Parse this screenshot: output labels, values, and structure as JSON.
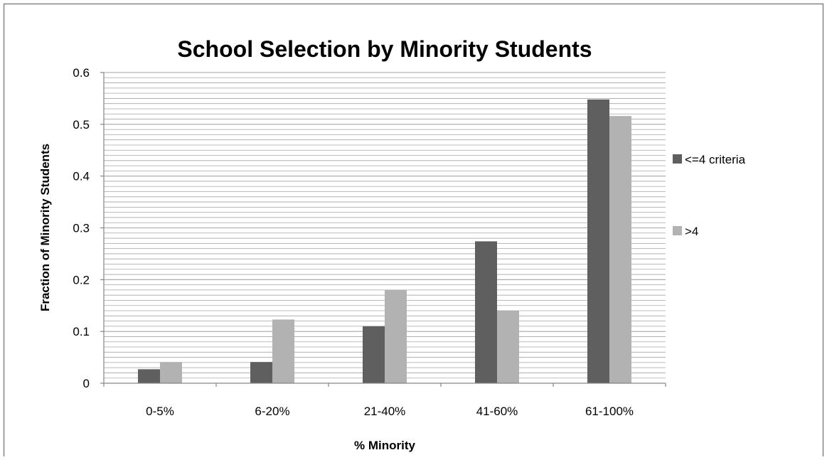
{
  "chart_data": {
    "type": "bar",
    "title": "School Selection by Minority Students",
    "xlabel": "% Minority",
    "ylabel": "Fraction of Minority Students",
    "categories": [
      "0-5%",
      "6-20%",
      "21-40%",
      "41-60%",
      "61-100%"
    ],
    "series": [
      {
        "name": "<=4 criteria",
        "values": [
          0.027,
          0.041,
          0.11,
          0.274,
          0.548
        ],
        "color": "#5f5f5f"
      },
      {
        "name": ">4",
        "values": [
          0.041,
          0.123,
          0.18,
          0.14,
          0.516
        ],
        "color": "#b2b2b2"
      }
    ],
    "ylim": [
      0,
      0.6
    ],
    "yticks": [
      "0",
      "0.1",
      "0.2",
      "0.3",
      "0.4",
      "0.5",
      "0.6"
    ],
    "major_step": 0.1,
    "minor_step": 0.01,
    "grid": true,
    "legend": "right",
    "colors": {
      "axis": "#868686",
      "gridline": "#a6a6a6",
      "border": "#868686",
      "text": "#000000"
    }
  }
}
